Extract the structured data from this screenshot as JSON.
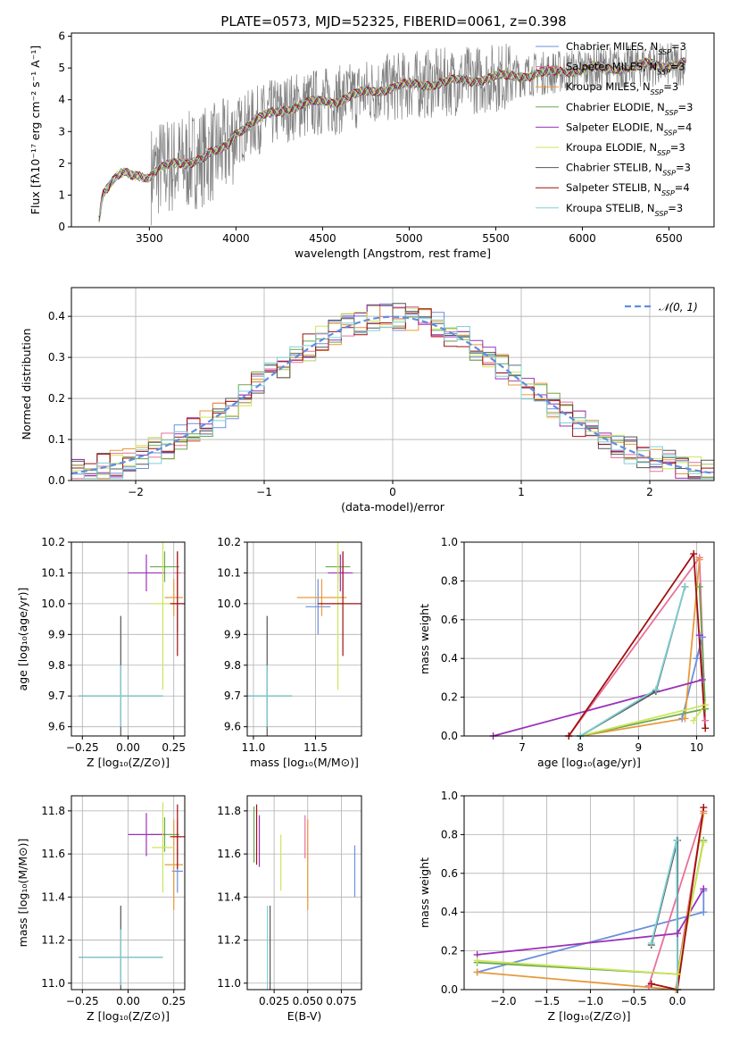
{
  "figure": {
    "title": "PLATE=0573, MJD=52325, FIBERID=0061, z=0.398"
  },
  "colors": {
    "chabrier_miles": "#6b8fdc",
    "salpeter_miles": "#e8709a",
    "kroupa_miles": "#e69a3c",
    "chabrier_elodie": "#6aa84f",
    "salpeter_elodie": "#9b30b8",
    "kroupa_elodie": "#cde65a",
    "chabrier_stelib": "#555555",
    "salpeter_stelib": "#a01010",
    "kroupa_stelib": "#7fd0d4",
    "data": "#808080",
    "normal": "#5f8fe0",
    "grid": "#b0b0b0"
  },
  "chart_data": [
    {
      "id": "spectrum",
      "type": "line",
      "title": "PLATE=0573, MJD=52325, FIBERID=0061, z=0.398",
      "xlabel": "wavelength [Angstrom, rest frame]",
      "ylabel": "Flux [fλ10⁻¹⁷ erg cm⁻² s⁻¹ A⁻¹]",
      "xlim": [
        3050,
        6760
      ],
      "ylim": [
        0,
        6.1
      ],
      "xticks": [
        "3500",
        "4000",
        "4500",
        "5000",
        "5500",
        "6000",
        "6500"
      ],
      "yticks": [
        "0",
        "1",
        "2",
        "3",
        "4",
        "5",
        "6"
      ],
      "legend_position": "top-right",
      "legend": [
        {
          "label": "Chabrier MILES, N",
          "sub": "SSP",
          "suffix": "=3",
          "color_key": "chabrier_miles"
        },
        {
          "label": "Salpeter MILES, N",
          "sub": "SSP",
          "suffix": "=3",
          "color_key": "salpeter_miles"
        },
        {
          "label": "Kroupa MILES, N",
          "sub": "SSP",
          "suffix": "=3",
          "color_key": "kroupa_miles"
        },
        {
          "label": "Chabrier ELODIE, N",
          "sub": "SSP",
          "suffix": "=3",
          "color_key": "chabrier_elodie"
        },
        {
          "label": "Salpeter ELODIE, N",
          "sub": "SSP",
          "suffix": "=4",
          "color_key": "salpeter_elodie"
        },
        {
          "label": "Kroupa ELODIE, N",
          "sub": "SSP",
          "suffix": "=3",
          "color_key": "kroupa_elodie"
        },
        {
          "label": "Chabrier STELIB, N",
          "sub": "SSP",
          "suffix": "=3",
          "color_key": "chabrier_stelib"
        },
        {
          "label": "Salpeter STELIB, N",
          "sub": "SSP",
          "suffix": "=4",
          "color_key": "salpeter_stelib"
        },
        {
          "label": "Kroupa STELIB, N",
          "sub": "SSP",
          "suffix": "=3",
          "color_key": "kroupa_stelib"
        }
      ],
      "model_continuum": {
        "x": [
          3210,
          3230,
          3300,
          3350,
          3400,
          3450,
          3500,
          3550,
          3600,
          3650,
          3700,
          3750,
          3800,
          3850,
          3900,
          3950,
          4000,
          4100,
          4200,
          4300,
          4400,
          4500,
          4600,
          4700,
          4800,
          4900,
          5000,
          5100,
          5200,
          5300,
          5400,
          5500,
          5600,
          5700,
          5800,
          5900,
          6000,
          6100,
          6200,
          6300,
          6400,
          6500,
          6600
        ],
        "y": [
          0.3,
          1.1,
          1.5,
          1.65,
          1.6,
          1.65,
          1.6,
          1.85,
          1.9,
          1.95,
          2.0,
          2.1,
          2.2,
          2.3,
          2.35,
          2.55,
          3.0,
          3.3,
          3.55,
          3.75,
          3.85,
          3.95,
          4.0,
          4.15,
          4.3,
          4.4,
          4.45,
          4.5,
          4.55,
          4.6,
          4.65,
          4.7,
          4.75,
          4.8,
          4.85,
          4.9,
          4.95,
          5.0,
          5.0,
          5.05,
          5.1,
          5.1,
          5.15
        ]
      },
      "data_envelope": {
        "x_start": 3510,
        "x_end": 6600
      }
    },
    {
      "id": "residuals",
      "type": "histogram",
      "xlabel": "(data-model)/error",
      "ylabel": "Normed distribution",
      "xlim": [
        -2.5,
        2.5
      ],
      "ylim": [
        0,
        0.47
      ],
      "xticks": [
        "−2",
        "−1",
        "0",
        "1",
        "2"
      ],
      "yticks": [
        "0.0",
        "0.1",
        "0.2",
        "0.3",
        "0.4"
      ],
      "legend_position": "top-right",
      "legend": [
        {
          "label": "𝒩(0, 1)",
          "color_key": "normal"
        }
      ],
      "bin_width": 0.1
    },
    {
      "id": "age-vs-Z",
      "type": "errorbar",
      "xlabel": "Z [log₁₀(Z/Z⊙)]",
      "ylabel": "age  [log₁₀(age/yr)]",
      "xlim": [
        -0.31,
        0.31
      ],
      "ylim": [
        9.57,
        10.2
      ],
      "xticks": [
        -0.25,
        0.0,
        0.25
      ],
      "xtick_labels": [
        "−0.25",
        "0.00",
        "0.25"
      ],
      "yticks": [
        9.6,
        9.7,
        9.8,
        9.9,
        10.0,
        10.1,
        10.2
      ],
      "ytick_labels": [
        "9.6",
        "9.7",
        "9.8",
        "9.9",
        "10.0",
        "10.1",
        "10.2"
      ],
      "points": [
        {
          "key": "chabrier_miles",
          "x": 0.27,
          "xerr": 0.03,
          "y": 10.0,
          "yerr": 0.09
        },
        {
          "key": "salpeter_miles",
          "x": 0.27,
          "xerr": 0.02,
          "y": 10.1,
          "yerr": 0.07
        },
        {
          "key": "kroupa_miles",
          "x": 0.25,
          "xerr": 0.05,
          "y": 10.02,
          "yerr": 0.06
        },
        {
          "key": "chabrier_elodie",
          "x": 0.2,
          "xerr": 0.08,
          "y": 10.12,
          "yerr": 0.05
        },
        {
          "key": "salpeter_elodie",
          "x": 0.1,
          "xerr": 0.1,
          "y": 10.1,
          "yerr": 0.06
        },
        {
          "key": "kroupa_elodie",
          "x": 0.19,
          "xerr": 0.06,
          "y": 10.0,
          "yerr": 0.28
        },
        {
          "key": "chabrier_stelib",
          "x": -0.04,
          "xerr": 0.23,
          "y": 9.7,
          "yerr": 0.26
        },
        {
          "key": "salpeter_stelib",
          "x": 0.27,
          "xerr": 0.04,
          "y": 10.0,
          "yerr": 0.17
        },
        {
          "key": "kroupa_stelib",
          "x": -0.04,
          "xerr": 0.23,
          "y": 9.7,
          "yerr": 0.1
        }
      ]
    },
    {
      "id": "age-vs-mass",
      "type": "errorbar",
      "xlabel": "mass [log₁₀(M/M⊙)]",
      "ylabel": "",
      "xlim": [
        10.95,
        11.87
      ],
      "ylim": [
        9.57,
        10.2
      ],
      "xticks": [
        11.0,
        11.5
      ],
      "xtick_labels": [
        "11.0",
        "11.5"
      ],
      "yticks": [
        9.6,
        9.7,
        9.8,
        9.9,
        10.0,
        10.1,
        10.2
      ],
      "ytick_labels": [
        "9.6",
        "9.7",
        "9.8",
        "9.9",
        "10.0",
        "10.1",
        "10.2"
      ],
      "points": [
        {
          "key": "chabrier_miles",
          "x": 11.52,
          "xerr": 0.1,
          "y": 9.99,
          "yerr": 0.09
        },
        {
          "key": "salpeter_miles",
          "x": 11.72,
          "xerr": 0.05,
          "y": 10.1,
          "yerr": 0.07
        },
        {
          "key": "kroupa_miles",
          "x": 11.55,
          "xerr": 0.2,
          "y": 10.02,
          "yerr": 0.06
        },
        {
          "key": "chabrier_elodie",
          "x": 11.68,
          "xerr": 0.1,
          "y": 10.12,
          "yerr": 0.05
        },
        {
          "key": "salpeter_elodie",
          "x": 11.7,
          "xerr": 0.1,
          "y": 10.1,
          "yerr": 0.06
        },
        {
          "key": "kroupa_elodie",
          "x": 11.68,
          "xerr": 0.05,
          "y": 10.0,
          "yerr": 0.28
        },
        {
          "key": "chabrier_stelib",
          "x": 11.11,
          "xerr": 0.2,
          "y": 9.7,
          "yerr": 0.26
        },
        {
          "key": "salpeter_stelib",
          "x": 11.72,
          "xerr": 0.2,
          "y": 10.0,
          "yerr": 0.17
        },
        {
          "key": "kroupa_stelib",
          "x": 11.11,
          "xerr": 0.2,
          "y": 9.7,
          "yerr": 0.1
        }
      ]
    },
    {
      "id": "weight-vs-age",
      "type": "line",
      "xlabel": "age  [log₁₀(age/yr)]",
      "ylabel": "mass weight",
      "xlim": [
        6.0,
        10.3
      ],
      "ylim": [
        0.0,
        1.0
      ],
      "xticks": [
        7,
        8,
        9,
        10
      ],
      "xtick_labels": [
        "7",
        "8",
        "9",
        "10"
      ],
      "yticks": [
        0.0,
        0.2,
        0.4,
        0.6,
        0.8,
        1.0
      ],
      "ytick_labels": [
        "0.0",
        "0.2",
        "0.4",
        "0.6",
        "0.8",
        "1.0"
      ],
      "series": [
        {
          "key": "chabrier_miles",
          "x": [
            9.75,
            10.1,
            10.0
          ],
          "y": [
            0.09,
            0.51,
            0.4
          ]
        },
        {
          "key": "salpeter_miles",
          "x": [
            7.8,
            10.05,
            10.15
          ],
          "y": [
            0.0,
            0.92,
            0.08
          ]
        },
        {
          "key": "kroupa_miles",
          "x": [
            8.0,
            9.8,
            10.05
          ],
          "y": [
            0.0,
            0.09,
            0.91
          ]
        },
        {
          "key": "chabrier_elodie",
          "x": [
            8.0,
            10.15,
            10.05
          ],
          "y": [
            0.0,
            0.14,
            0.77
          ]
        },
        {
          "key": "salpeter_elodie",
          "x": [
            6.5,
            10.1,
            10.05
          ],
          "y": [
            0.0,
            0.29,
            0.52
          ]
        },
        {
          "key": "kroupa_elodie",
          "x": [
            8.0,
            10.15,
            9.95
          ],
          "y": [
            0.0,
            0.16,
            0.08
          ]
        },
        {
          "key": "chabrier_stelib",
          "x": [
            8.0,
            9.3,
            9.8
          ],
          "y": [
            0.0,
            0.23,
            0.77
          ]
        },
        {
          "key": "salpeter_stelib",
          "x": [
            7.8,
            9.95,
            10.15
          ],
          "y": [
            0.0,
            0.94,
            0.04
          ]
        },
        {
          "key": "kroupa_stelib",
          "x": [
            8.0,
            9.3,
            9.8
          ],
          "y": [
            0.0,
            0.24,
            0.77
          ]
        }
      ]
    },
    {
      "id": "mass-vs-Z",
      "type": "errorbar",
      "xlabel": "Z [log₁₀(Z/Z⊙)]",
      "ylabel": "mass [log₁₀(M/M⊙)]",
      "xlim": [
        -0.31,
        0.31
      ],
      "ylim": [
        10.97,
        11.87
      ],
      "xticks": [
        -0.25,
        0.0,
        0.25
      ],
      "xtick_labels": [
        "−0.25",
        "0.00",
        "0.25"
      ],
      "yticks": [
        11.0,
        11.2,
        11.4,
        11.6,
        11.8
      ],
      "ytick_labels": [
        "11.0",
        "11.2",
        "11.4",
        "11.6",
        "11.8"
      ],
      "points": [
        {
          "key": "chabrier_miles",
          "x": 0.27,
          "xerr": 0.03,
          "y": 11.52,
          "yerr": 0.1
        },
        {
          "key": "salpeter_miles",
          "x": 0.27,
          "xerr": 0.02,
          "y": 11.68,
          "yerr": 0.08
        },
        {
          "key": "kroupa_miles",
          "x": 0.25,
          "xerr": 0.05,
          "y": 11.55,
          "yerr": 0.21
        },
        {
          "key": "chabrier_elodie",
          "x": 0.2,
          "xerr": 0.08,
          "y": 11.69,
          "yerr": 0.08
        },
        {
          "key": "salpeter_elodie",
          "x": 0.1,
          "xerr": 0.1,
          "y": 11.69,
          "yerr": 0.1
        },
        {
          "key": "kroupa_elodie",
          "x": 0.19,
          "xerr": 0.06,
          "y": 11.63,
          "yerr": 0.21
        },
        {
          "key": "chabrier_stelib",
          "x": -0.04,
          "xerr": 0.23,
          "y": 11.12,
          "yerr": 0.24
        },
        {
          "key": "salpeter_stelib",
          "x": 0.27,
          "xerr": 0.04,
          "y": 11.68,
          "yerr": 0.15
        },
        {
          "key": "kroupa_stelib",
          "x": -0.04,
          "xerr": 0.23,
          "y": 11.12,
          "yerr": 0.13
        }
      ]
    },
    {
      "id": "mass-vs-ebv",
      "type": "errorbar",
      "xlabel": "E(B-V)",
      "ylabel": "",
      "xlim": [
        0.005,
        0.09
      ],
      "ylim": [
        10.97,
        11.87
      ],
      "xticks": [
        0.025,
        0.05,
        0.075
      ],
      "xtick_labels": [
        "0.025",
        "0.050",
        "0.075"
      ],
      "yticks": [
        11.0,
        11.2,
        11.4,
        11.6,
        11.8
      ],
      "ytick_labels": [
        "11.0",
        "11.2",
        "11.4",
        "11.6",
        "11.8"
      ],
      "points": [
        {
          "key": "chabrier_miles",
          "x": 0.085,
          "xerr": 0.0,
          "y": 11.52,
          "yerr": 0.12
        },
        {
          "key": "salpeter_miles",
          "x": 0.048,
          "xerr": 0.0,
          "y": 11.68,
          "yerr": 0.1
        },
        {
          "key": "kroupa_miles",
          "x": 0.05,
          "xerr": 0.0,
          "y": 11.55,
          "yerr": 0.21
        },
        {
          "key": "chabrier_elodie",
          "x": 0.01,
          "xerr": 0.0,
          "y": 11.69,
          "yerr": 0.13
        },
        {
          "key": "salpeter_elodie",
          "x": 0.014,
          "xerr": 0.0,
          "y": 11.66,
          "yerr": 0.12
        },
        {
          "key": "kroupa_elodie",
          "x": 0.03,
          "xerr": 0.0,
          "y": 11.56,
          "yerr": 0.13
        },
        {
          "key": "chabrier_stelib",
          "x": 0.022,
          "xerr": 0.0,
          "y": 11.12,
          "yerr": 0.24
        },
        {
          "key": "salpeter_stelib",
          "x": 0.012,
          "xerr": 0.0,
          "y": 11.69,
          "yerr": 0.14
        },
        {
          "key": "kroupa_stelib",
          "x": 0.02,
          "xerr": 0.0,
          "y": 11.12,
          "yerr": 0.24
        }
      ]
    },
    {
      "id": "weight-vs-Z",
      "type": "line",
      "xlabel": "Z [log₁₀(Z/Z⊙)]",
      "ylabel": "mass weight",
      "xlim": [
        -2.45,
        0.42
      ],
      "ylim": [
        0.0,
        1.0
      ],
      "xticks": [
        -2.0,
        -1.5,
        -1.0,
        -0.5,
        0.0
      ],
      "xtick_labels": [
        "−2.0",
        "−1.5",
        "−1.0",
        "−0.5",
        "0.0"
      ],
      "yticks": [
        0.0,
        0.2,
        0.4,
        0.6,
        0.8,
        1.0
      ],
      "ytick_labels": [
        "0.0",
        "0.2",
        "0.4",
        "0.6",
        "0.8",
        "1.0"
      ],
      "series": [
        {
          "key": "chabrier_miles",
          "x": [
            -2.3,
            0.3,
            0.3
          ],
          "y": [
            0.09,
            0.4,
            0.51
          ]
        },
        {
          "key": "salpeter_miles",
          "x": [
            -0.33,
            0.3,
            0.0
          ],
          "y": [
            0.02,
            0.92,
            0.08
          ]
        },
        {
          "key": "kroupa_miles",
          "x": [
            -2.3,
            -0.02,
            0.3
          ],
          "y": [
            0.09,
            0.0,
            0.91
          ]
        },
        {
          "key": "chabrier_elodie",
          "x": [
            -2.3,
            0.0,
            0.3
          ],
          "y": [
            0.14,
            0.08,
            0.77
          ]
        },
        {
          "key": "salpeter_elodie",
          "x": [
            -2.3,
            0.0,
            0.3
          ],
          "y": [
            0.18,
            0.29,
            0.52
          ]
        },
        {
          "key": "kroupa_elodie",
          "x": [
            -2.3,
            0.0,
            0.3
          ],
          "y": [
            0.15,
            0.08,
            0.76
          ]
        },
        {
          "key": "chabrier_stelib",
          "x": [
            -0.3,
            0.0,
            0.0
          ],
          "y": [
            0.23,
            0.77,
            0.0
          ]
        },
        {
          "key": "salpeter_stelib",
          "x": [
            -0.3,
            0.0,
            0.3
          ],
          "y": [
            0.03,
            0.0,
            0.94
          ]
        },
        {
          "key": "kroupa_stelib",
          "x": [
            -0.3,
            -0.01,
            0.0
          ],
          "y": [
            0.24,
            0.77,
            0.0
          ]
        }
      ]
    }
  ]
}
